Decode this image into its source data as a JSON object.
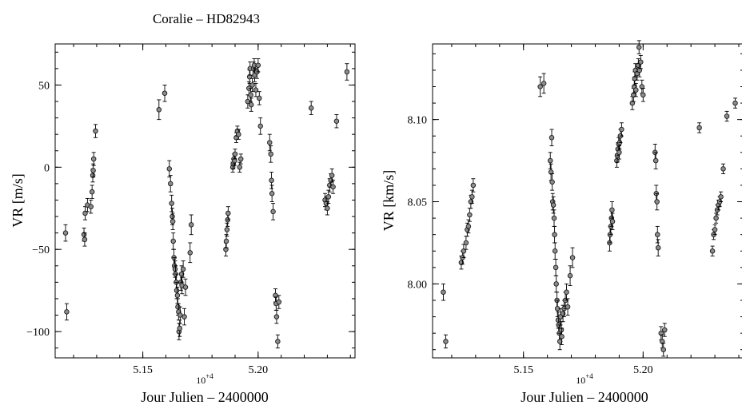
{
  "figure": {
    "title": "Coralie – HD82943",
    "colors": {
      "marker_fill": "#8c8c8c",
      "marker_edge": "#1a1a1a",
      "axes": "#000000"
    }
  },
  "chart_data": [
    {
      "type": "scatter",
      "title": "Coralie – HD82943",
      "xlabel": "Jour Julien – 2400000",
      "ylabel": "VR [m/s]",
      "x_multiplier_label": "10",
      "x_multiplier_exp": "+4",
      "xlim": [
        5.112,
        5.242
      ],
      "ylim": [
        -116,
        75
      ],
      "xticks": [
        5.15,
        5.2
      ],
      "xtick_labels": [
        "5.15",
        "5.20"
      ],
      "yticks": [
        -100,
        -50,
        0,
        50
      ],
      "ytick_labels": [
        "−100",
        "−50",
        "0",
        "50"
      ],
      "error_bars": true,
      "marker": "open circle with error bar",
      "points": [
        [
          5.1165,
          -40,
          5
        ],
        [
          5.117,
          -88,
          5
        ],
        [
          5.1245,
          -41,
          4
        ],
        [
          5.1248,
          -44,
          4
        ],
        [
          5.125,
          -28,
          4
        ],
        [
          5.126,
          -23,
          4
        ],
        [
          5.1275,
          -24,
          4
        ],
        [
          5.128,
          -15,
          4
        ],
        [
          5.1283,
          -5,
          4
        ],
        [
          5.1285,
          -2,
          4
        ],
        [
          5.1287,
          5,
          4
        ],
        [
          5.1295,
          22,
          4
        ],
        [
          5.157,
          35,
          6
        ],
        [
          5.1595,
          45,
          5
        ],
        [
          5.1615,
          -1,
          5
        ],
        [
          5.162,
          -10,
          5
        ],
        [
          5.1625,
          -22,
          5
        ],
        [
          5.1628,
          -30,
          5
        ],
        [
          5.163,
          -33,
          5
        ],
        [
          5.1632,
          -45,
          5
        ],
        [
          5.1635,
          -55,
          5
        ],
        [
          5.1637,
          -60,
          5
        ],
        [
          5.164,
          -62,
          5
        ],
        [
          5.1642,
          -65,
          5
        ],
        [
          5.1645,
          -70,
          5
        ],
        [
          5.1647,
          -75,
          5
        ],
        [
          5.165,
          -78,
          5
        ],
        [
          5.1652,
          -85,
          5
        ],
        [
          5.1655,
          -88,
          5
        ],
        [
          5.1657,
          -100,
          5
        ],
        [
          5.166,
          -98,
          5
        ],
        [
          5.1662,
          -90,
          5
        ],
        [
          5.1665,
          -70,
          5
        ],
        [
          5.1668,
          -65,
          5
        ],
        [
          5.167,
          -72,
          5
        ],
        [
          5.1675,
          -62,
          5
        ],
        [
          5.168,
          -91,
          5
        ],
        [
          5.1685,
          -73,
          5
        ],
        [
          5.1705,
          -52,
          6
        ],
        [
          5.171,
          -35,
          6
        ],
        [
          5.186,
          -50,
          4
        ],
        [
          5.1862,
          -45,
          4
        ],
        [
          5.1865,
          -38,
          4
        ],
        [
          5.1868,
          -32,
          4
        ],
        [
          5.187,
          -28,
          4
        ],
        [
          5.189,
          0,
          3
        ],
        [
          5.1892,
          2,
          3
        ],
        [
          5.1895,
          5,
          3
        ],
        [
          5.1898,
          4,
          3
        ],
        [
          5.19,
          8,
          3
        ],
        [
          5.1905,
          18,
          3
        ],
        [
          5.191,
          22,
          3
        ],
        [
          5.1915,
          20,
          3
        ],
        [
          5.192,
          0,
          3
        ],
        [
          5.1925,
          5,
          3
        ],
        [
          5.1955,
          40,
          4
        ],
        [
          5.196,
          48,
          4
        ],
        [
          5.1963,
          55,
          4
        ],
        [
          5.1965,
          60,
          4
        ],
        [
          5.1968,
          44,
          4
        ],
        [
          5.197,
          38,
          4
        ],
        [
          5.1975,
          50,
          4
        ],
        [
          5.198,
          60,
          4
        ],
        [
          5.1983,
          62,
          4
        ],
        [
          5.1985,
          56,
          4
        ],
        [
          5.199,
          47,
          4
        ],
        [
          5.1995,
          58,
          4
        ],
        [
          5.2,
          62,
          4
        ],
        [
          5.2005,
          42,
          4
        ],
        [
          5.201,
          25,
          5
        ],
        [
          5.205,
          15,
          5
        ],
        [
          5.2055,
          8,
          5
        ],
        [
          5.2058,
          -8,
          5
        ],
        [
          5.206,
          -16,
          5
        ],
        [
          5.2065,
          -27,
          5
        ],
        [
          5.2075,
          -78,
          4
        ],
        [
          5.2078,
          -83,
          4
        ],
        [
          5.208,
          -91,
          4
        ],
        [
          5.2085,
          -106,
          4
        ],
        [
          5.209,
          -82,
          4
        ],
        [
          5.223,
          36,
          4
        ],
        [
          5.229,
          -20,
          4
        ],
        [
          5.2295,
          -22,
          4
        ],
        [
          5.23,
          -25,
          4
        ],
        [
          5.2305,
          -18,
          4
        ],
        [
          5.231,
          -11,
          4
        ],
        [
          5.2315,
          -8,
          4
        ],
        [
          5.232,
          -5,
          4
        ],
        [
          5.2325,
          -12,
          4
        ],
        [
          5.234,
          28,
          4
        ],
        [
          5.2385,
          58,
          5
        ]
      ]
    },
    {
      "type": "scatter",
      "title": "",
      "xlabel": "Jour Julien – 2400000",
      "ylabel": "VR [km/s]",
      "x_multiplier_label": "10",
      "x_multiplier_exp": "+4",
      "xlim": [
        5.112,
        5.242
      ],
      "ylim": [
        7.955,
        8.146
      ],
      "xticks": [
        5.15,
        5.2
      ],
      "xtick_labels": [
        "5.15",
        "5.20"
      ],
      "yticks": [
        8.0,
        8.05,
        8.1
      ],
      "ytick_labels": [
        "8.00",
        "8.05",
        "8.10"
      ],
      "error_bars": true,
      "marker": "open circle with error bar",
      "points": [
        [
          5.1165,
          7.995,
          0.005
        ],
        [
          5.1175,
          7.965,
          0.004
        ],
        [
          5.124,
          8.013,
          0.004
        ],
        [
          5.1245,
          8.016,
          0.004
        ],
        [
          5.125,
          8.02,
          0.004
        ],
        [
          5.126,
          8.025,
          0.004
        ],
        [
          5.1265,
          8.033,
          0.004
        ],
        [
          5.127,
          8.035,
          0.004
        ],
        [
          5.1275,
          8.042,
          0.004
        ],
        [
          5.128,
          8.05,
          0.004
        ],
        [
          5.1285,
          8.053,
          0.004
        ],
        [
          5.129,
          8.06,
          0.004
        ],
        [
          5.157,
          8.12,
          0.006
        ],
        [
          5.1585,
          8.122,
          0.006
        ],
        [
          5.1612,
          8.075,
          0.005
        ],
        [
          5.1615,
          8.068,
          0.005
        ],
        [
          5.1618,
          8.089,
          0.005
        ],
        [
          5.162,
          8.062,
          0.005
        ],
        [
          5.1622,
          8.05,
          0.005
        ],
        [
          5.1625,
          8.048,
          0.005
        ],
        [
          5.1628,
          8.04,
          0.005
        ],
        [
          5.163,
          8.03,
          0.005
        ],
        [
          5.1632,
          8.02,
          0.005
        ],
        [
          5.1635,
          8.01,
          0.005
        ],
        [
          5.1637,
          8.0,
          0.005
        ],
        [
          5.164,
          7.99,
          0.005
        ],
        [
          5.1642,
          7.985,
          0.005
        ],
        [
          5.1645,
          7.978,
          0.005
        ],
        [
          5.1647,
          7.975,
          0.005
        ],
        [
          5.165,
          7.97,
          0.005
        ],
        [
          5.1652,
          7.965,
          0.005
        ],
        [
          5.1655,
          7.98,
          0.005
        ],
        [
          5.1658,
          7.972,
          0.005
        ],
        [
          5.166,
          7.968,
          0.005
        ],
        [
          5.1665,
          7.982,
          0.005
        ],
        [
          5.167,
          7.985,
          0.005
        ],
        [
          5.1675,
          7.99,
          0.005
        ],
        [
          5.168,
          7.995,
          0.005
        ],
        [
          5.1685,
          7.986,
          0.005
        ],
        [
          5.1695,
          8.005,
          0.006
        ],
        [
          5.1705,
          8.016,
          0.006
        ],
        [
          5.186,
          8.025,
          0.005
        ],
        [
          5.1862,
          8.03,
          0.005
        ],
        [
          5.1865,
          8.035,
          0.005
        ],
        [
          5.1868,
          8.04,
          0.005
        ],
        [
          5.187,
          8.045,
          0.005
        ],
        [
          5.1872,
          8.038,
          0.005
        ],
        [
          5.189,
          8.075,
          0.004
        ],
        [
          5.1892,
          8.078,
          0.004
        ],
        [
          5.1895,
          8.082,
          0.004
        ],
        [
          5.1898,
          8.085,
          0.004
        ],
        [
          5.19,
          8.08,
          0.004
        ],
        [
          5.1902,
          8.086,
          0.004
        ],
        [
          5.1905,
          8.09,
          0.004
        ],
        [
          5.191,
          8.094,
          0.004
        ],
        [
          5.1955,
          8.11,
          0.004
        ],
        [
          5.196,
          8.115,
          0.004
        ],
        [
          5.1963,
          8.12,
          0.004
        ],
        [
          5.1965,
          8.125,
          0.004
        ],
        [
          5.1968,
          8.13,
          0.004
        ],
        [
          5.197,
          8.118,
          0.004
        ],
        [
          5.1975,
          8.128,
          0.004
        ],
        [
          5.198,
          8.133,
          0.004
        ],
        [
          5.1983,
          8.144,
          0.004
        ],
        [
          5.1985,
          8.13,
          0.004
        ],
        [
          5.199,
          8.135,
          0.004
        ],
        [
          5.1995,
          8.12,
          0.004
        ],
        [
          5.2,
          8.115,
          0.004
        ],
        [
          5.205,
          8.08,
          0.005
        ],
        [
          5.2053,
          8.075,
          0.005
        ],
        [
          5.2055,
          8.055,
          0.005
        ],
        [
          5.2058,
          8.05,
          0.005
        ],
        [
          5.206,
          8.03,
          0.005
        ],
        [
          5.2063,
          8.022,
          0.005
        ],
        [
          5.2075,
          7.97,
          0.004
        ],
        [
          5.208,
          7.965,
          0.004
        ],
        [
          5.2085,
          7.96,
          0.004
        ],
        [
          5.209,
          7.972,
          0.004
        ],
        [
          5.2235,
          8.095,
          0.003
        ],
        [
          5.229,
          8.02,
          0.003
        ],
        [
          5.2295,
          8.03,
          0.003
        ],
        [
          5.23,
          8.033,
          0.003
        ],
        [
          5.2305,
          8.04,
          0.003
        ],
        [
          5.231,
          8.045,
          0.003
        ],
        [
          5.2315,
          8.048,
          0.003
        ],
        [
          5.232,
          8.05,
          0.003
        ],
        [
          5.2325,
          8.053,
          0.003
        ],
        [
          5.2335,
          8.07,
          0.003
        ],
        [
          5.235,
          8.102,
          0.003
        ],
        [
          5.2385,
          8.11,
          0.003
        ]
      ]
    }
  ]
}
